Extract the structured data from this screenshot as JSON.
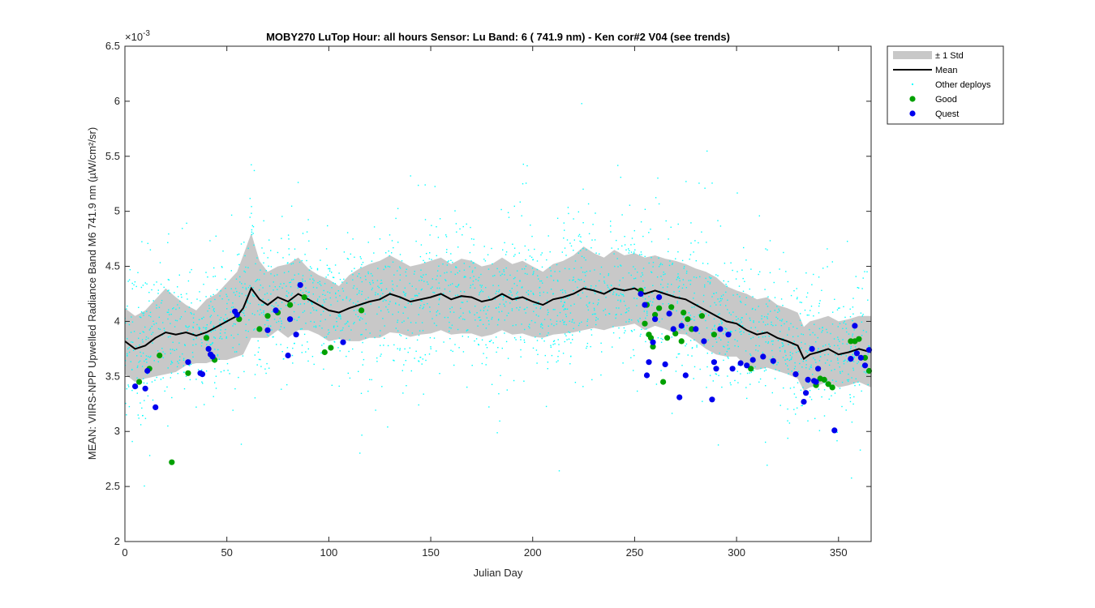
{
  "chart_data": {
    "type": "scatter",
    "title": "MOBY270   LuTop  Hour: all hours  Sensor: Lu Band: 6 ( 741.9 nm)  - Ken cor#2 V04 (see trends)",
    "xlabel": "Julian Day",
    "ylabel": "MEAN: VIIRS-NPP Upwelled Radiance Band M6 741.9 nm (µW/cm²/sr)",
    "y_exponent_label": "×10",
    "y_exponent_value": "-3",
    "xlim": [
      0,
      366
    ],
    "ylim": [
      2,
      6.5
    ],
    "xticks": [
      "0",
      "50",
      "100",
      "150",
      "200",
      "250",
      "300",
      "350"
    ],
    "yticks": [
      "2",
      "2.5",
      "3",
      "3.5",
      "4",
      "4.5",
      "5",
      "5.5",
      "6",
      "6.5"
    ],
    "grid": false,
    "legend_position": "outside top-right",
    "colors": {
      "std_band": "#c8c8c8",
      "mean": "#000000",
      "other": "#00ffff",
      "good": "#00a000",
      "quest": "#0000ee"
    },
    "legend": [
      {
        "key": "std",
        "label": "± 1 Std"
      },
      {
        "key": "mean",
        "label": "Mean"
      },
      {
        "key": "other",
        "label": "Other deploys"
      },
      {
        "key": "good",
        "label": "Good"
      },
      {
        "key": "quest",
        "label": "Quest"
      }
    ],
    "series": [
      {
        "name": "Mean",
        "x": [
          0,
          5,
          10,
          15,
          20,
          25,
          30,
          35,
          40,
          45,
          50,
          55,
          58,
          62,
          66,
          70,
          75,
          80,
          85,
          90,
          95,
          100,
          105,
          110,
          115,
          120,
          125,
          130,
          135,
          140,
          145,
          150,
          155,
          160,
          165,
          170,
          175,
          180,
          185,
          190,
          195,
          200,
          205,
          210,
          215,
          220,
          225,
          230,
          235,
          240,
          245,
          250,
          255,
          260,
          265,
          270,
          275,
          280,
          285,
          290,
          295,
          300,
          305,
          310,
          315,
          320,
          325,
          330,
          333,
          336,
          340,
          345,
          350,
          355,
          360,
          366
        ],
        "y": [
          3.82,
          3.75,
          3.78,
          3.85,
          3.9,
          3.88,
          3.9,
          3.87,
          3.9,
          3.95,
          4.0,
          4.05,
          4.12,
          4.3,
          4.2,
          4.15,
          4.22,
          4.18,
          4.25,
          4.2,
          4.15,
          4.1,
          4.08,
          4.12,
          4.15,
          4.18,
          4.2,
          4.25,
          4.22,
          4.18,
          4.2,
          4.22,
          4.25,
          4.2,
          4.23,
          4.22,
          4.18,
          4.2,
          4.25,
          4.2,
          4.22,
          4.18,
          4.15,
          4.2,
          4.22,
          4.25,
          4.3,
          4.28,
          4.25,
          4.3,
          4.28,
          4.3,
          4.25,
          4.28,
          4.25,
          4.22,
          4.2,
          4.15,
          4.1,
          4.05,
          4.0,
          3.98,
          3.92,
          3.88,
          3.9,
          3.85,
          3.82,
          3.78,
          3.66,
          3.7,
          3.72,
          3.75,
          3.7,
          3.72,
          3.75,
          3.72
        ]
      },
      {
        "name": "± 1 Std",
        "x": [
          0,
          5,
          10,
          15,
          20,
          25,
          30,
          35,
          40,
          45,
          50,
          55,
          58,
          62,
          66,
          70,
          75,
          80,
          85,
          90,
          95,
          100,
          105,
          110,
          115,
          120,
          125,
          130,
          135,
          140,
          145,
          150,
          155,
          160,
          165,
          170,
          175,
          180,
          185,
          190,
          195,
          200,
          205,
          210,
          215,
          220,
          225,
          230,
          235,
          240,
          245,
          250,
          255,
          260,
          265,
          270,
          275,
          280,
          285,
          290,
          295,
          300,
          305,
          310,
          315,
          320,
          325,
          330,
          333,
          336,
          340,
          345,
          350,
          355,
          360,
          366
        ],
        "y_upper": [
          4.12,
          4.05,
          4.1,
          4.2,
          4.3,
          4.22,
          4.15,
          4.1,
          4.2,
          4.25,
          4.35,
          4.45,
          4.6,
          4.8,
          4.55,
          4.45,
          4.5,
          4.52,
          4.58,
          4.48,
          4.42,
          4.38,
          4.32,
          4.42,
          4.48,
          4.52,
          4.55,
          4.6,
          4.55,
          4.5,
          4.52,
          4.55,
          4.58,
          4.52,
          4.57,
          4.55,
          4.5,
          4.52,
          4.58,
          4.52,
          4.55,
          4.5,
          4.45,
          4.52,
          4.55,
          4.6,
          4.68,
          4.62,
          4.58,
          4.65,
          4.6,
          4.62,
          4.58,
          4.6,
          4.57,
          4.55,
          4.52,
          4.48,
          4.45,
          4.4,
          4.32,
          4.28,
          4.25,
          4.2,
          4.22,
          4.15,
          4.12,
          4.08,
          3.95,
          4.0,
          4.02,
          4.05,
          4.0,
          4.02,
          4.05,
          4.05
        ],
        "y_lower": [
          3.52,
          3.45,
          3.48,
          3.5,
          3.52,
          3.54,
          3.6,
          3.62,
          3.62,
          3.65,
          3.65,
          3.68,
          3.7,
          3.85,
          3.85,
          3.85,
          3.92,
          3.85,
          3.92,
          3.92,
          3.88,
          3.82,
          3.84,
          3.82,
          3.82,
          3.85,
          3.85,
          3.9,
          3.89,
          3.86,
          3.88,
          3.89,
          3.92,
          3.88,
          3.89,
          3.89,
          3.86,
          3.88,
          3.92,
          3.88,
          3.89,
          3.86,
          3.85,
          3.88,
          3.89,
          3.9,
          3.92,
          3.94,
          3.92,
          3.95,
          3.96,
          3.98,
          3.92,
          3.96,
          3.93,
          3.89,
          3.88,
          3.82,
          3.75,
          3.7,
          3.68,
          3.68,
          3.59,
          3.56,
          3.58,
          3.55,
          3.52,
          3.48,
          3.37,
          3.4,
          3.42,
          3.45,
          3.4,
          3.42,
          3.45,
          3.4
        ]
      },
      {
        "name": "Good",
        "x": [
          7,
          12,
          17,
          23,
          31,
          40,
          44,
          56,
          66,
          70,
          75,
          81,
          88,
          98,
          101,
          116,
          253,
          255,
          256,
          257,
          258,
          259,
          260,
          262,
          264,
          266,
          268,
          270,
          273,
          274,
          276,
          278,
          283,
          289,
          307,
          339,
          341,
          343,
          345,
          347,
          356,
          358,
          360,
          363,
          365
        ],
        "y": [
          3.45,
          3.57,
          3.69,
          2.72,
          3.53,
          3.85,
          3.65,
          4.02,
          3.93,
          4.05,
          4.08,
          4.15,
          4.22,
          3.72,
          3.76,
          4.1,
          4.28,
          3.98,
          4.15,
          3.88,
          3.85,
          3.77,
          4.06,
          4.12,
          3.45,
          3.85,
          4.13,
          3.89,
          3.82,
          4.08,
          4.02,
          3.93,
          4.05,
          3.88,
          3.57,
          3.42,
          3.48,
          3.47,
          3.43,
          3.4,
          3.82,
          3.82,
          3.84,
          3.67,
          3.55
        ]
      },
      {
        "name": "Quest",
        "x": [
          5,
          10,
          11,
          15,
          31,
          37,
          38,
          41,
          42,
          43,
          54,
          55,
          70,
          74,
          80,
          81,
          84,
          86,
          107,
          253,
          255,
          256,
          257,
          259,
          260,
          262,
          265,
          267,
          269,
          272,
          273,
          275,
          280,
          284,
          288,
          289,
          290,
          292,
          296,
          298,
          302,
          305,
          308,
          313,
          318,
          329,
          333,
          334,
          335,
          337,
          338,
          339,
          340,
          348,
          356,
          358,
          359,
          361,
          363,
          365
        ],
        "y": [
          3.41,
          3.39,
          3.55,
          3.22,
          3.63,
          3.53,
          3.52,
          3.75,
          3.7,
          3.68,
          4.09,
          4.06,
          3.92,
          4.1,
          3.69,
          4.02,
          3.88,
          4.33,
          3.81,
          4.25,
          4.15,
          3.51,
          3.63,
          3.81,
          4.02,
          4.22,
          3.61,
          4.07,
          3.93,
          3.31,
          3.96,
          3.51,
          3.93,
          3.82,
          3.29,
          3.63,
          3.57,
          3.93,
          3.88,
          3.57,
          3.62,
          3.6,
          3.65,
          3.68,
          3.64,
          3.52,
          3.27,
          3.35,
          3.47,
          3.75,
          3.46,
          3.45,
          3.57,
          3.01,
          3.66,
          3.96,
          3.71,
          3.67,
          3.6,
          3.74
        ]
      }
    ]
  }
}
